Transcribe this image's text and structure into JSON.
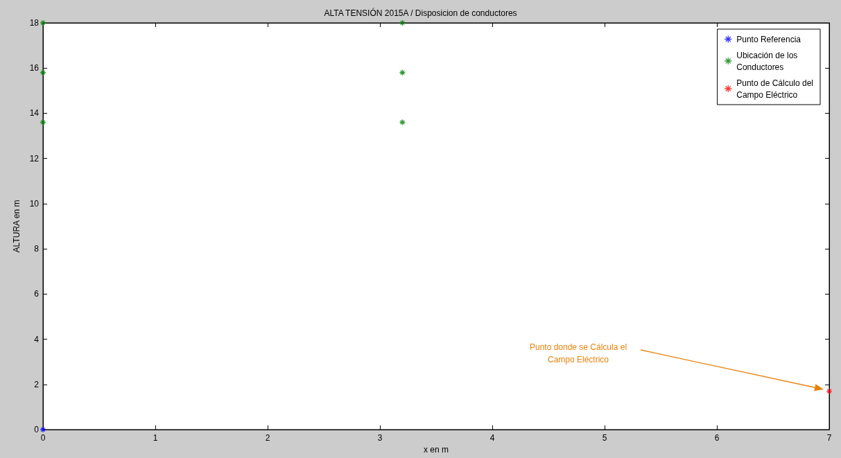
{
  "chart_data": {
    "type": "scatter",
    "title": "ALTA TENSIÓN 2015A / Disposicion de conductores",
    "xlabel": "x en m",
    "ylabel": "ALTURA en m",
    "series": [
      {
        "name": "Punto Referencia",
        "color": "#0000ff",
        "marker": "cross",
        "x": [
          0
        ],
        "values": [
          0
        ]
      },
      {
        "name": "Ubicación de los\nConductores",
        "color": "#008000",
        "marker": "cross",
        "x": [
          0,
          0,
          0,
          3.2,
          3.2,
          3.2
        ],
        "values": [
          13.6,
          15.8,
          18,
          13.6,
          15.8,
          18
        ]
      },
      {
        "name": "Punto de Cálculo del\nCampo Eléctrico",
        "color": "#ff0000",
        "marker": "cross",
        "x": [
          7
        ],
        "values": [
          1.7
        ]
      }
    ],
    "annotations": [
      "Punto donde se Cálcula el\nCampo Eléctrico"
    ],
    "xlim": [
      0,
      7
    ],
    "xticks": [
      0,
      1,
      2,
      3,
      4,
      5,
      6,
      7
    ],
    "ylim": [
      0,
      18
    ],
    "yticks": [
      0,
      2,
      4,
      6,
      8,
      10,
      12,
      14,
      16,
      18
    ],
    "grid": false,
    "legend": "top right"
  }
}
